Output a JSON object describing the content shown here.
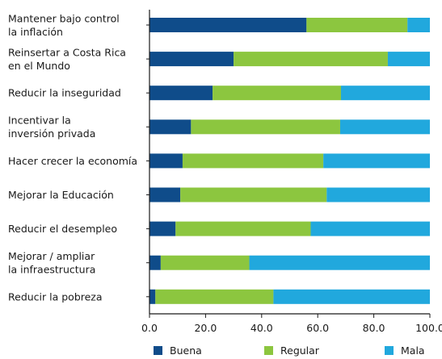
{
  "chart_data": {
    "type": "bar",
    "orientation": "horizontal",
    "stacked": true,
    "categories": [
      [
        "Mantener bajo control",
        "la inflación"
      ],
      [
        "Reinsertar a Costa Rica",
        "en el Mundo"
      ],
      [
        "Reducir la inseguridad"
      ],
      [
        "Incentivar la",
        "inversión privada"
      ],
      [
        "Hacer crecer la economía"
      ],
      [
        "Mejorar la Educación"
      ],
      [
        "Reducir el desempleo"
      ],
      [
        "Mejorar / ampliar",
        "la infraestructura"
      ],
      [
        "Reducir la pobreza"
      ]
    ],
    "series": [
      {
        "name": "Buena",
        "color": "#0f4c8a",
        "values": [
          56.0,
          30.0,
          22.5,
          14.8,
          11.8,
          11.0,
          9.3,
          4.0,
          2.1
        ]
      },
      {
        "name": "Regular",
        "color": "#8cc63f",
        "values": [
          36.0,
          55.0,
          45.8,
          53.2,
          50.2,
          52.2,
          48.2,
          31.6,
          42.1
        ]
      },
      {
        "name": "Mala",
        "color": "#21a8dd",
        "values": [
          8.0,
          15.0,
          31.7,
          32.0,
          38.0,
          36.8,
          42.5,
          64.4,
          55.8
        ]
      }
    ],
    "x_ticks": [
      "0.0",
      "20.0",
      "40.0",
      "60.0",
      "80.0",
      "100.0"
    ],
    "xlim": [
      0,
      100
    ],
    "legend_position": "bottom",
    "grid": false
  }
}
